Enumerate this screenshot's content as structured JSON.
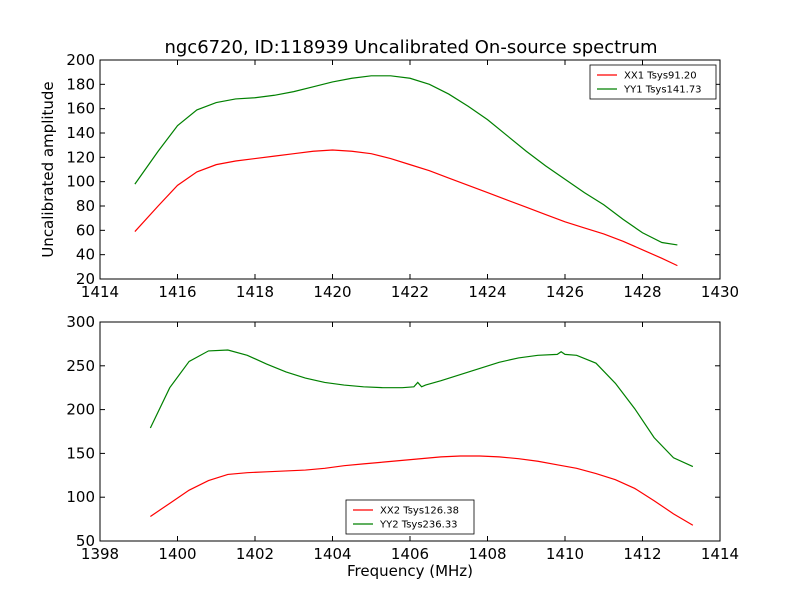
{
  "figure": {
    "title": "ngc6720, ID:118939 Uncalibrated On-source spectrum"
  },
  "chart_data": [
    {
      "type": "line",
      "title": "ngc6720, ID:118939 Uncalibrated On-source spectrum",
      "xlabel": "",
      "ylabel": "Uncalibrated amplitude",
      "xlim": [
        1414,
        1430
      ],
      "ylim": [
        20,
        200
      ],
      "xticks": [
        "1414",
        "1416",
        "1418",
        "1420",
        "1422",
        "1424",
        "1426",
        "1428",
        "1430"
      ],
      "yticks": [
        "20",
        "40",
        "60",
        "80",
        "100",
        "120",
        "140",
        "160",
        "180",
        "200"
      ],
      "grid": false,
      "legend": "top-right",
      "series": [
        {
          "name": "XX1 Tsys91.20",
          "color": "#ff0000",
          "x": [
            1414.9,
            1415.5,
            1416,
            1416.5,
            1417,
            1417.5,
            1418,
            1418.5,
            1419,
            1419.5,
            1420,
            1420.5,
            1421,
            1421.5,
            1422,
            1422.5,
            1423,
            1423.5,
            1424,
            1424.5,
            1425,
            1425.5,
            1426,
            1426.5,
            1427,
            1427.5,
            1428,
            1428.5,
            1428.9
          ],
          "y": [
            59,
            80,
            97,
            108,
            114,
            117,
            119,
            121,
            123,
            125,
            126,
            125,
            123,
            119,
            114,
            109,
            103,
            97,
            91,
            85,
            79,
            73,
            67,
            62,
            57,
            51,
            44,
            37,
            31
          ]
        },
        {
          "name": "YY1 Tsys141.73",
          "color": "#008000",
          "x": [
            1414.9,
            1415.5,
            1416,
            1416.5,
            1417,
            1417.5,
            1418,
            1418.5,
            1419,
            1419.5,
            1420,
            1420.5,
            1421,
            1421.5,
            1422,
            1422.5,
            1423,
            1423.5,
            1424,
            1424.5,
            1425,
            1425.5,
            1426,
            1426.5,
            1427,
            1427.5,
            1428,
            1428.5,
            1428.9
          ],
          "y": [
            98,
            125,
            146,
            159,
            165,
            168,
            169,
            171,
            174,
            178,
            182,
            185,
            187,
            187,
            185,
            180,
            172,
            162,
            151,
            138,
            125,
            113,
            102,
            91,
            81,
            69,
            58,
            50,
            48
          ]
        }
      ]
    },
    {
      "type": "line",
      "title": "",
      "xlabel": "Frequency (MHz)",
      "ylabel": "",
      "xlim": [
        1398,
        1414
      ],
      "ylim": [
        50,
        300
      ],
      "xticks": [
        "1398",
        "1400",
        "1402",
        "1404",
        "1406",
        "1408",
        "1410",
        "1412",
        "1414"
      ],
      "yticks": [
        "50",
        "100",
        "150",
        "200",
        "250",
        "300"
      ],
      "grid": false,
      "legend": "bottom-center",
      "series": [
        {
          "name": "XX2 Tsys126.38",
          "color": "#ff0000",
          "x": [
            1399.3,
            1399.8,
            1400.3,
            1400.8,
            1401.3,
            1401.8,
            1402.3,
            1402.8,
            1403.3,
            1403.8,
            1404.3,
            1404.8,
            1405.3,
            1405.8,
            1406.3,
            1406.8,
            1407.3,
            1407.8,
            1408.3,
            1408.8,
            1409.3,
            1409.8,
            1410.3,
            1410.8,
            1411.3,
            1411.8,
            1412.3,
            1412.8,
            1413.3
          ],
          "y": [
            78,
            93,
            108,
            119,
            126,
            128,
            129,
            130,
            131,
            133,
            136,
            138,
            140,
            142,
            144,
            146,
            147,
            147,
            146,
            144,
            141,
            137,
            133,
            127,
            120,
            110,
            96,
            81,
            68
          ]
        },
        {
          "name": "YY2 Tsys236.33",
          "color": "#008000",
          "x": [
            1399.3,
            1399.8,
            1400.3,
            1400.8,
            1401.3,
            1401.8,
            1402.3,
            1402.8,
            1403.3,
            1403.8,
            1404.3,
            1404.8,
            1405.3,
            1405.8,
            1406.1,
            1406.2,
            1406.3,
            1406.4,
            1406.8,
            1407.3,
            1407.8,
            1408.3,
            1408.8,
            1409.3,
            1409.8,
            1409.9,
            1410.0,
            1410.3,
            1410.8,
            1411.3,
            1411.8,
            1412.3,
            1412.8,
            1413.3
          ],
          "y": [
            179,
            225,
            255,
            267,
            268,
            262,
            252,
            243,
            236,
            231,
            228,
            226,
            225,
            225,
            226,
            231,
            226,
            228,
            233,
            240,
            247,
            254,
            259,
            262,
            263,
            266,
            263,
            262,
            253,
            230,
            201,
            168,
            145,
            135
          ]
        }
      ]
    }
  ]
}
